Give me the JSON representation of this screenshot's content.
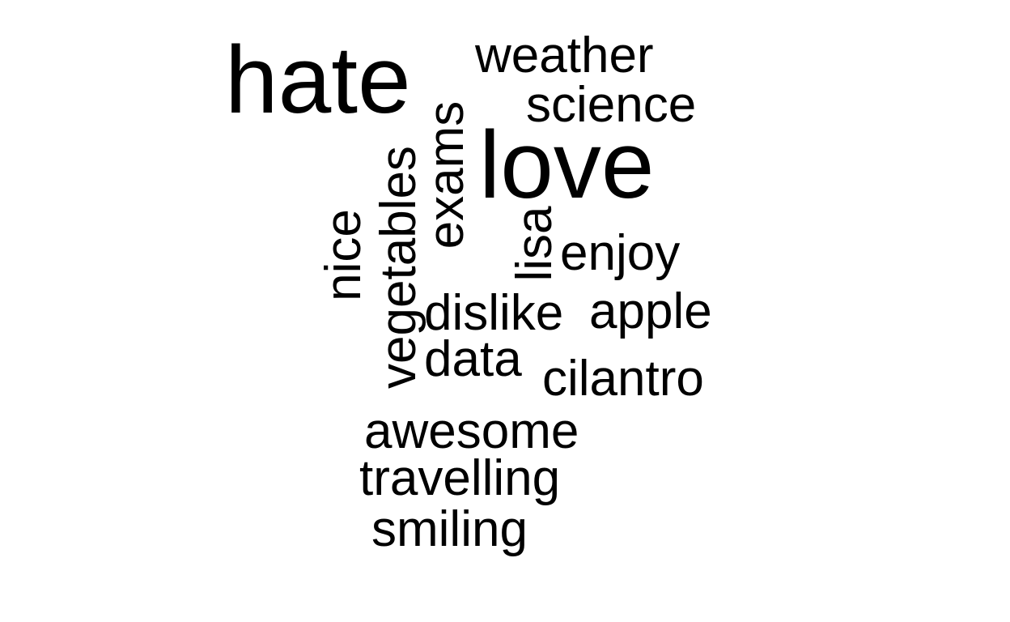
{
  "words": {
    "hate": "hate",
    "weather": "weather",
    "science": "science",
    "love": "love",
    "exams": "exams",
    "vegetables": "vegetables",
    "nice": "nice",
    "lisa": "lisa",
    "enjoy": "enjoy",
    "dislike": "dislike",
    "apple": "apple",
    "data": "data",
    "cilantro": "cilantro",
    "awesome": "awesome",
    "travelling": "travelling",
    "smiling": "smiling"
  },
  "colors": {
    "background": "#ffffff",
    "text": "#000000"
  }
}
